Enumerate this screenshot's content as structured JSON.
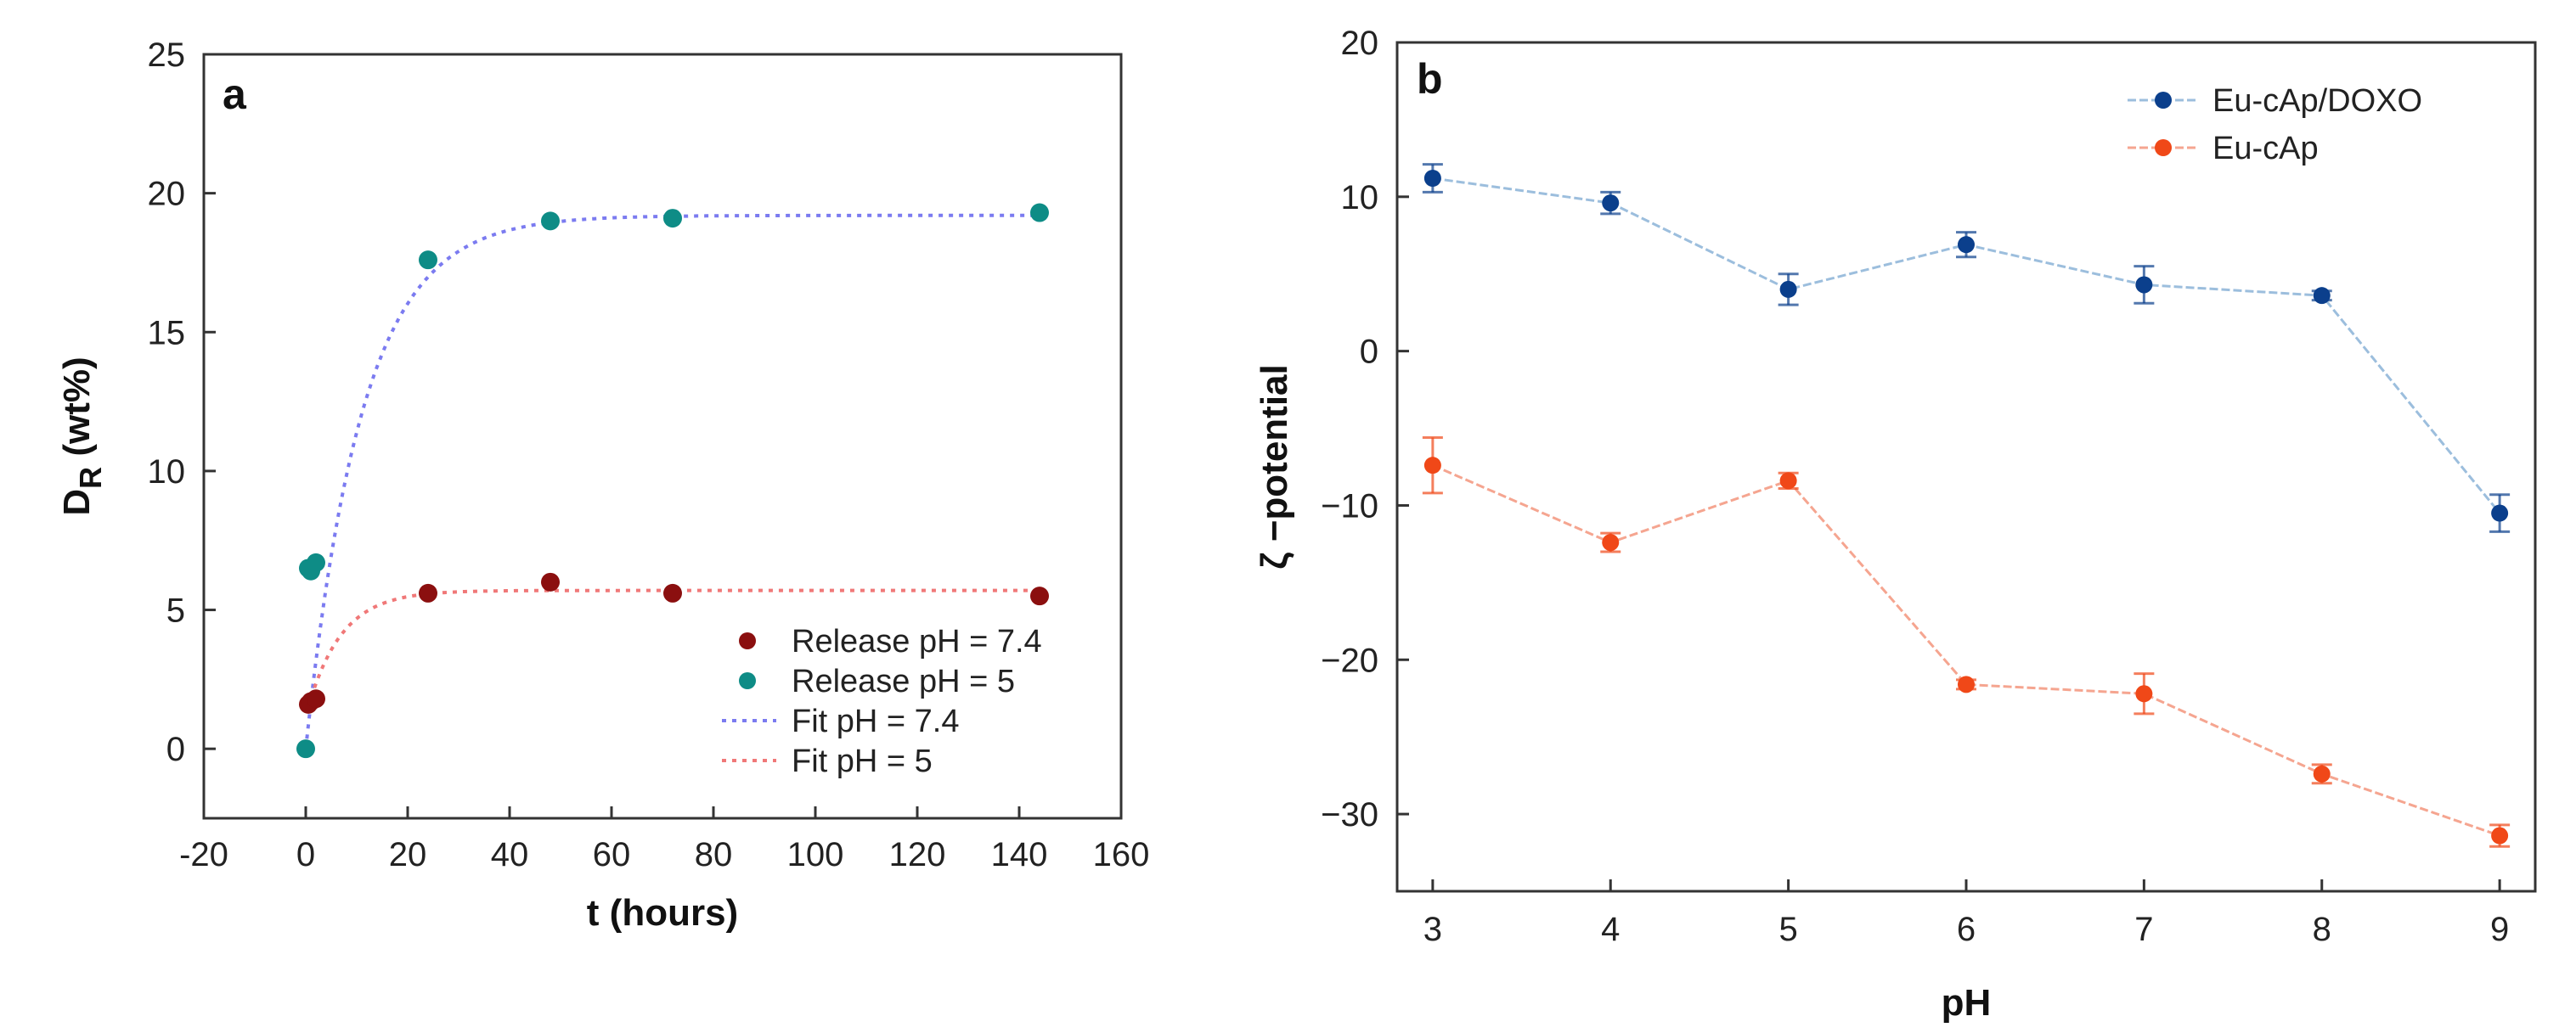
{
  "chart_data": [
    {
      "panel": "a",
      "type": "scatter",
      "title": "",
      "xlabel": "t (hours)",
      "ylabel": {
        "main": "D",
        "sub": "R",
        "unit": " (wt%)"
      },
      "xlim": [
        -20,
        160
      ],
      "ylim": [
        -2.5,
        25
      ],
      "xticks": [
        -20,
        0,
        20,
        40,
        60,
        80,
        100,
        120,
        140,
        160
      ],
      "yticks": [
        0,
        5,
        10,
        15,
        20,
        25
      ],
      "grid": false,
      "legend_position": "bottom-right",
      "series": [
        {
          "name": "Release pH = 7.4",
          "kind": "points",
          "color": "#8B0F0F",
          "x": [
            0.5,
            1,
            2,
            24,
            48,
            72,
            144
          ],
          "y": [
            1.6,
            1.7,
            1.8,
            5.6,
            6.0,
            5.6,
            5.5
          ]
        },
        {
          "name": "Release pH = 5",
          "kind": "points",
          "color": "#0E8C86",
          "x": [
            0,
            0.5,
            1,
            2,
            24,
            48,
            72,
            144
          ],
          "y": [
            0.0,
            6.5,
            6.4,
            6.7,
            17.6,
            19.0,
            19.1,
            19.3
          ]
        },
        {
          "name": "Fit pH = 7.4",
          "kind": "fit",
          "color": "#7B7BF0",
          "asymptote": 19.2,
          "offset": 0,
          "rate": 0.09,
          "x0": 0
        },
        {
          "name": "Fit pH = 5",
          "kind": "fit",
          "color": "#F07878",
          "asymptote": 5.7,
          "offset": 1.5,
          "rate": 0.15,
          "x0": 0.5
        }
      ]
    },
    {
      "panel": "b",
      "type": "line",
      "title": "",
      "xlabel": "pH",
      "ylabel": "ζ −potential",
      "xlim": [
        2.8,
        9.2
      ],
      "ylim": [
        -35,
        20
      ],
      "xticks": [
        3,
        4,
        5,
        6,
        7,
        8,
        9
      ],
      "yticks": [
        -30,
        -20,
        -10,
        0,
        10,
        20
      ],
      "grid": false,
      "legend_position": "top-right",
      "x": [
        3,
        4,
        5,
        6,
        7,
        8,
        9
      ],
      "series": [
        {
          "name": "Eu-cAp/DOXO",
          "color": "#0B3F8C",
          "line_color": "#9CBEDD",
          "values": [
            11.2,
            9.6,
            4.0,
            6.9,
            4.3,
            3.6,
            -10.5
          ],
          "errors": [
            0.9,
            0.7,
            1.0,
            0.8,
            1.2,
            0.3,
            1.2
          ]
        },
        {
          "name": "Eu-cAp",
          "color": "#F04818",
          "line_color": "#F5A590",
          "values": [
            -7.4,
            -12.4,
            -8.4,
            -21.6,
            -22.2,
            -27.4,
            -31.4
          ],
          "errors": [
            1.8,
            0.6,
            0.5,
            0.3,
            1.3,
            0.6,
            0.7
          ]
        }
      ]
    }
  ]
}
